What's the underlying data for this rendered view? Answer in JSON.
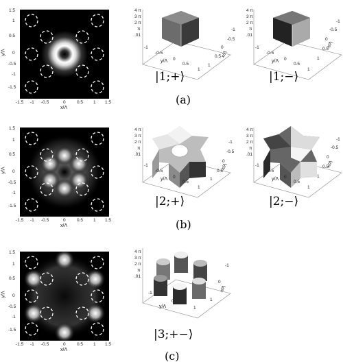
{
  "rows": [
    {
      "label": "(a)",
      "intensity": {
        "pattern": "ring",
        "x_ticks": [
          "-1.5",
          "-1",
          "-0.5",
          "0",
          "0.5",
          "1",
          "1.5"
        ],
        "y_ticks": [
          "1.5",
          "1",
          "0.5",
          "0",
          "-0.5",
          "-1",
          "-1.5"
        ],
        "xlabel": "x/Λ",
        "ylabel": "y/Λ"
      },
      "phase_plots": [
        {
          "ket": "|1;+⟩",
          "z_ticks": [
            "4 π",
            "3 π",
            "2 π",
            "π",
            ".01"
          ],
          "y_axis": [
            "-1",
            "-0.5",
            "0",
            "0.5",
            "1"
          ],
          "ylabel": "y/Λ",
          "x_axis": [
            "-1",
            "-0.5",
            "0",
            "0.5",
            "1"
          ],
          "xlabel": "x/Λ"
        },
        {
          "ket": "|1;−⟩",
          "z_ticks": [
            "4 π",
            "3 π",
            "2 π",
            "π",
            ".01"
          ],
          "y_axis": [
            "-1",
            "-0.5",
            "0",
            "0.5",
            "1"
          ],
          "ylabel": "y/Λ",
          "x_axis": [
            "-1",
            "-0.5",
            "0",
            "0.5",
            "1"
          ],
          "xlabel": "x/Λ"
        }
      ]
    },
    {
      "label": "(b)",
      "intensity": {
        "pattern": "six_lobes",
        "x_ticks": [
          "-1.5",
          "-1",
          "-0.5",
          "0",
          "0.5",
          "1",
          "1.5"
        ],
        "y_ticks": [
          "1.5",
          "1",
          "0.5",
          "0",
          "-0.5",
          "-1",
          "-1.5"
        ],
        "xlabel": "x/Λ",
        "ylabel": "y/Λ"
      },
      "phase_plots": [
        {
          "ket": "|2;+⟩",
          "z_ticks": [
            "4 π",
            "3 π",
            "2 π",
            "π",
            ".01"
          ],
          "y_axis": [
            "-1",
            "-0.5",
            "0",
            "0.5",
            "1"
          ],
          "ylabel": "y/Λ",
          "x_axis": [
            "-1",
            "-0.5",
            "0",
            "0.5",
            "1"
          ],
          "xlabel": "x/Λ"
        },
        {
          "ket": "|2;−⟩",
          "z_ticks": [
            "4 π",
            "3 π",
            "2 π",
            "π",
            ".01"
          ],
          "y_axis": [
            "-1",
            "-0.5",
            "0",
            "0.5",
            "1"
          ],
          "ylabel": "y/Λ",
          "x_axis": [
            "-1",
            "-0.5",
            "0",
            "0.5",
            "1"
          ],
          "xlabel": "x/Λ"
        }
      ]
    },
    {
      "label": "(c)",
      "intensity": {
        "pattern": "outer_lobes",
        "x_ticks": [
          "-1.5",
          "-1",
          "-0.5",
          "0",
          "0.5",
          "1",
          "1.5"
        ],
        "y_ticks": [
          "1.5",
          "1",
          "0.5",
          "0",
          "-0.5",
          "-1",
          "-1.5"
        ],
        "xlabel": "x/Λ",
        "ylabel": "y/Λ"
      },
      "phase_plots": [
        {
          "ket": "|3;+−⟩",
          "z_ticks": [
            "4 π",
            "3 π",
            "2 π",
            "π",
            ".01"
          ],
          "y_axis": [
            "-1",
            "0",
            "1"
          ],
          "ylabel": "y/Λ",
          "x_axis": [
            "-1",
            "0",
            "1"
          ],
          "xlabel": "x/Λ"
        }
      ]
    }
  ]
}
